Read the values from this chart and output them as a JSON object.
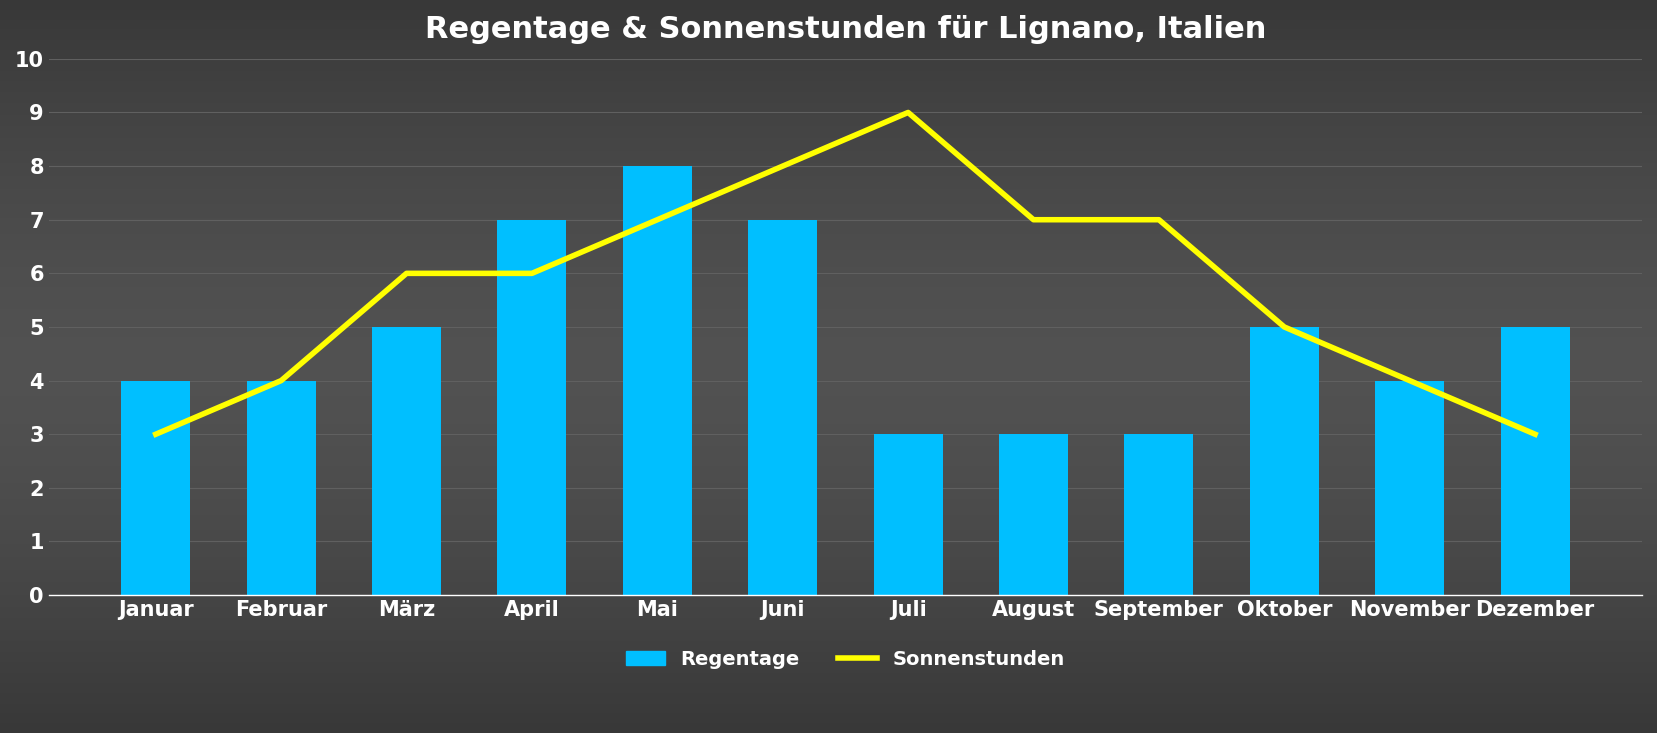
{
  "title": "Regentage & Sonnenstunden für Lignano, Italien",
  "months": [
    "Januar",
    "Februar",
    "März",
    "April",
    "Mai",
    "Juni",
    "Juli",
    "August",
    "September",
    "Oktober",
    "November",
    "Dezember"
  ],
  "regentage": [
    4,
    4,
    5,
    7,
    8,
    7,
    3,
    3,
    3,
    5,
    4,
    5
  ],
  "sonnenstunden": [
    3,
    4,
    6,
    6,
    7,
    8,
    9,
    7,
    7,
    5,
    4,
    3
  ],
  "bar_color": "#00BFFF",
  "line_color": "#FFFF00",
  "background_color_top": "#2a2a2a",
  "background_color_center": "#444444",
  "background_color_bottom": "#2a2a2a",
  "text_color": "#ffffff",
  "grid_color": "#606060",
  "ylim": [
    0,
    10
  ],
  "yticks": [
    0,
    1,
    2,
    3,
    4,
    5,
    6,
    7,
    8,
    9,
    10
  ],
  "title_fontsize": 22,
  "tick_fontsize": 15,
  "legend_fontsize": 14,
  "bar_width": 0.55,
  "line_width": 4,
  "legend_labels": [
    "Regentage",
    "Sonnenstunden"
  ]
}
